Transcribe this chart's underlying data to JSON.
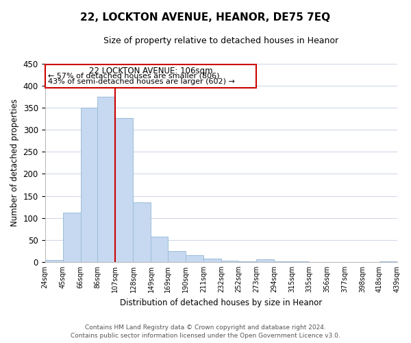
{
  "title": "22, LOCKTON AVENUE, HEANOR, DE75 7EQ",
  "subtitle": "Size of property relative to detached houses in Heanor",
  "xlabel": "Distribution of detached houses by size in Heanor",
  "ylabel": "Number of detached properties",
  "bar_edges": [
    24,
    45,
    66,
    86,
    107,
    128,
    149,
    169,
    190,
    211,
    232,
    252,
    273,
    294,
    315,
    335,
    356,
    377,
    398,
    418,
    439
  ],
  "bar_heights": [
    5,
    112,
    350,
    375,
    327,
    135,
    57,
    25,
    15,
    8,
    3,
    1,
    6,
    2,
    1,
    0,
    0,
    0,
    0,
    2
  ],
  "bar_color": "#c6d9f0",
  "bar_edgecolor": "#9dbdd8",
  "property_line_x": 107,
  "property_line_color": "#cc0000",
  "ylim": [
    0,
    450
  ],
  "tick_labels": [
    "24sqm",
    "45sqm",
    "66sqm",
    "86sqm",
    "107sqm",
    "128sqm",
    "149sqm",
    "169sqm",
    "190sqm",
    "211sqm",
    "232sqm",
    "252sqm",
    "273sqm",
    "294sqm",
    "315sqm",
    "335sqm",
    "356sqm",
    "377sqm",
    "398sqm",
    "418sqm",
    "439sqm"
  ],
  "annotation_title": "22 LOCKTON AVENUE: 106sqm",
  "annotation_line1": "← 57% of detached houses are smaller (806)",
  "annotation_line2": "43% of semi-detached houses are larger (602) →",
  "footer_line1": "Contains HM Land Registry data © Crown copyright and database right 2024.",
  "footer_line2": "Contains public sector information licensed under the Open Government Licence v3.0.",
  "grid_color": "#d0d8e8",
  "background_color": "#ffffff"
}
